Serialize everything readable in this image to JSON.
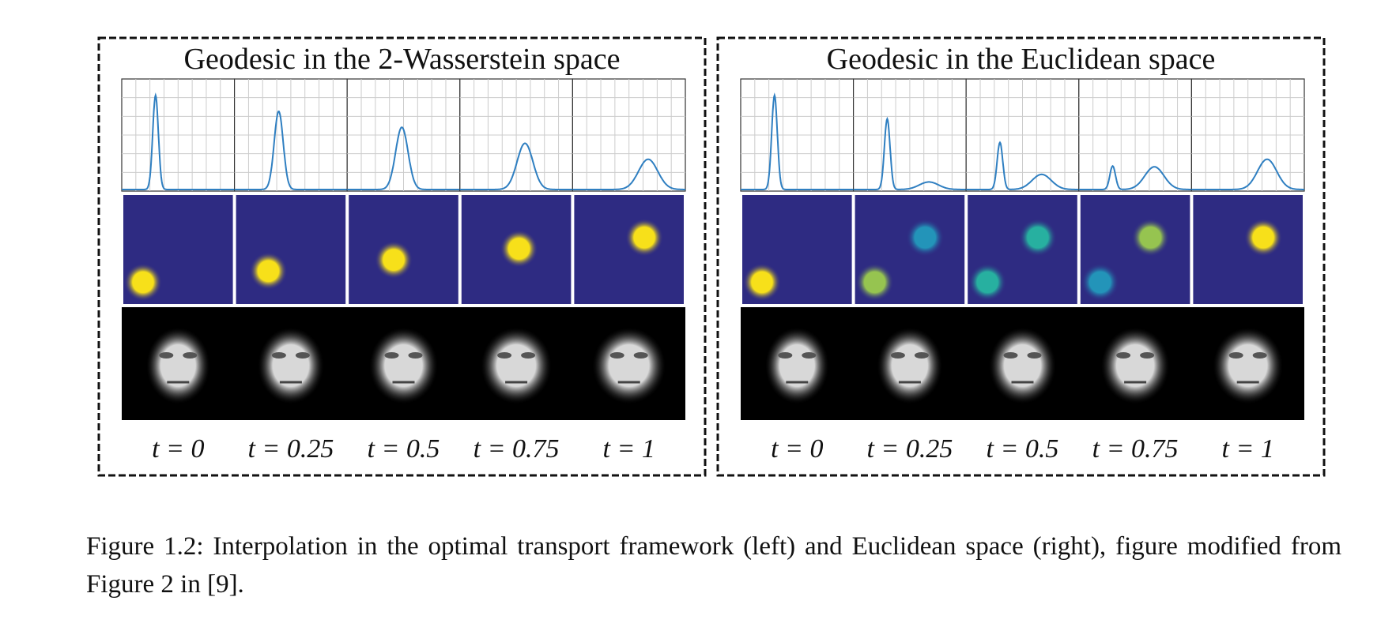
{
  "panels": [
    {
      "title": "Geodesic in the 2-Wasserstein space",
      "t_labels": [
        "t = 0",
        "t = 0.25",
        "t = 0.5",
        "t = 0.75",
        "t = 1"
      ]
    },
    {
      "title": "Geodesic in the Euclidean space",
      "t_labels": [
        "t = 0",
        "t = 0.25",
        "t = 0.5",
        "t = 0.75",
        "t = 1"
      ]
    }
  ],
  "caption": "Figure 1.2: Interpolation in the optimal transport framework (left) and Euclidean space (right), figure modified from Figure 2 in [9]."
}
